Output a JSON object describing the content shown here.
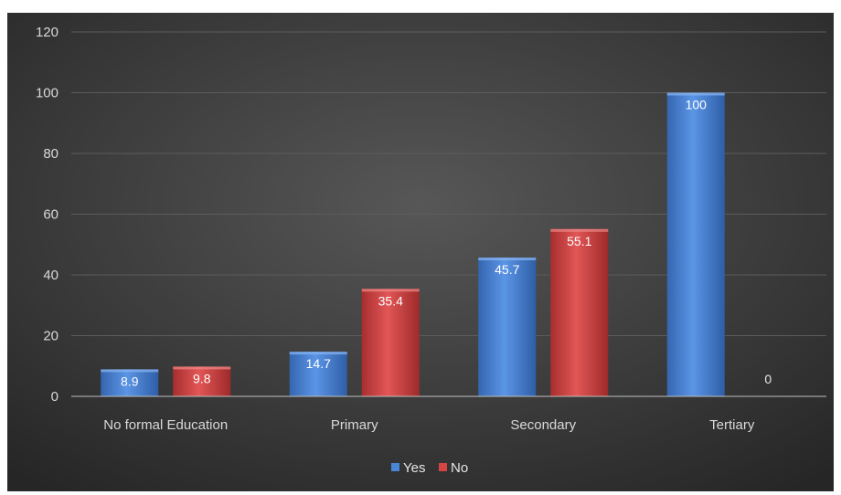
{
  "chart_data": {
    "type": "bar",
    "title": "",
    "xlabel": "",
    "ylabel": "",
    "categories": [
      "No formal Education",
      "Primary",
      "Secondary",
      "Tertiary"
    ],
    "series": [
      {
        "name": "Yes",
        "values": [
          8.9,
          14.7,
          45.7,
          100
        ],
        "labels": [
          "8.9",
          "14.7",
          "45.7",
          "100"
        ],
        "color": "#4a86d8"
      },
      {
        "name": "No",
        "values": [
          9.8,
          35.4,
          55.1,
          0
        ],
        "labels": [
          "9.8",
          "35.4",
          "55.1",
          "0"
        ],
        "color": "#d64545"
      }
    ],
    "ylim": [
      0,
      120
    ],
    "yticks": [
      "0",
      "20",
      "40",
      "60",
      "80",
      "100",
      "120"
    ],
    "grid": true,
    "legend_position": "bottom",
    "background": "#3a3a3a"
  }
}
